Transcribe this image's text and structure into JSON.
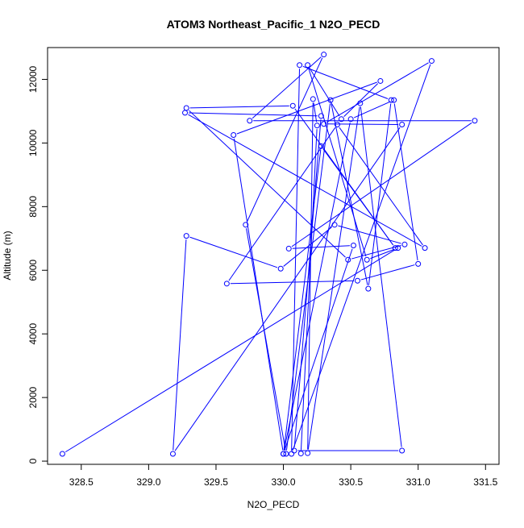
{
  "chart_data": {
    "type": "line",
    "title": "ATOM3 Northeast_Pacific_1 N2O_PECD",
    "xlabel": "N2O_PECD",
    "ylabel": "Altitude (m)",
    "xlim": [
      328.25,
      331.6
    ],
    "ylim": [
      -100,
      13000
    ],
    "xticks": [
      "328.5",
      "329.0",
      "329.5",
      "330.0",
      "330.5",
      "331.0",
      "331.5"
    ],
    "xtick_values": [
      328.5,
      329.0,
      329.5,
      330.0,
      330.5,
      331.0,
      331.5
    ],
    "yticks": [
      "0",
      "2000",
      "4000",
      "6000",
      "8000",
      "10000",
      "12000"
    ],
    "ytick_values": [
      0,
      2000,
      4000,
      6000,
      8000,
      10000,
      12000
    ],
    "grid": false,
    "legend": "none",
    "colors": {
      "series": "#0000ff",
      "axis": "#000000"
    },
    "series": [
      {
        "marker": "open-circle",
        "x": [
          328.36,
          330.85,
          330.62,
          330.18,
          330.43,
          330.72,
          329.63,
          330.0,
          330.52,
          330.04,
          331.42,
          329.75,
          330.3,
          329.72,
          330.02,
          330.35,
          330.63,
          330.8,
          330.12,
          330.06,
          331.1,
          330.3,
          330.88,
          329.18,
          329.28,
          329.98,
          330.38,
          330.9,
          330.48,
          329.28,
          330.07,
          330.83,
          330.28,
          330.0,
          330.5,
          330.82,
          331.0,
          330.55,
          329.58,
          330.4,
          331.05,
          329.27,
          330.28,
          330.08,
          330.88,
          330.57,
          330.18,
          330.22,
          330.25,
          330.13
        ],
        "y": [
          230,
          6700,
          6330,
          12450,
          10750,
          11950,
          10250,
          230,
          6780,
          6680,
          10700,
          10700,
          12780,
          7430,
          230,
          11350,
          5420,
          11350,
          12450,
          230,
          12580,
          10600,
          10580,
          230,
          7080,
          6050,
          7430,
          6810,
          6330,
          11100,
          11170,
          6700,
          9900,
          230,
          10750,
          11350,
          6200,
          5670,
          5580,
          10580,
          6700,
          10950,
          10850,
          330,
          330,
          11250,
          250,
          11380,
          10550,
          240
        ]
      }
    ]
  }
}
